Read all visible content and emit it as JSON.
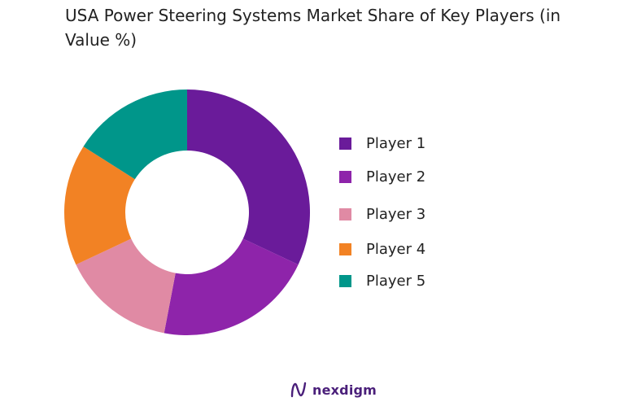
{
  "chart_data": {
    "type": "pie",
    "variant": "donut",
    "title": "USA Power Steering Systems Market Share of Key Players (in Value %)",
    "categories": [
      "Player 1",
      "Player 2",
      "Player 3",
      "Player 4",
      "Player 5"
    ],
    "values": [
      32,
      21,
      15,
      16,
      16
    ],
    "colors": [
      "#6a1b9a",
      "#8e24aa",
      "#e08aa4",
      "#f28224",
      "#00968a"
    ],
    "legend_position": "right",
    "start_angle_deg": 0,
    "direction": "clockwise"
  },
  "legend": {
    "items": [
      {
        "label": "Player 1",
        "color": "#6a1b9a"
      },
      {
        "label": "Player 2",
        "color": "#8e24aa"
      },
      {
        "label": "Player 3",
        "color": "#e08aa4"
      },
      {
        "label": "Player 4",
        "color": "#f28224"
      },
      {
        "label": "Player 5",
        "color": "#00968a"
      }
    ]
  },
  "brand": {
    "name": "nexdigm",
    "icon": "nexdigm-logo-icon",
    "color": "#4a1f7a"
  }
}
